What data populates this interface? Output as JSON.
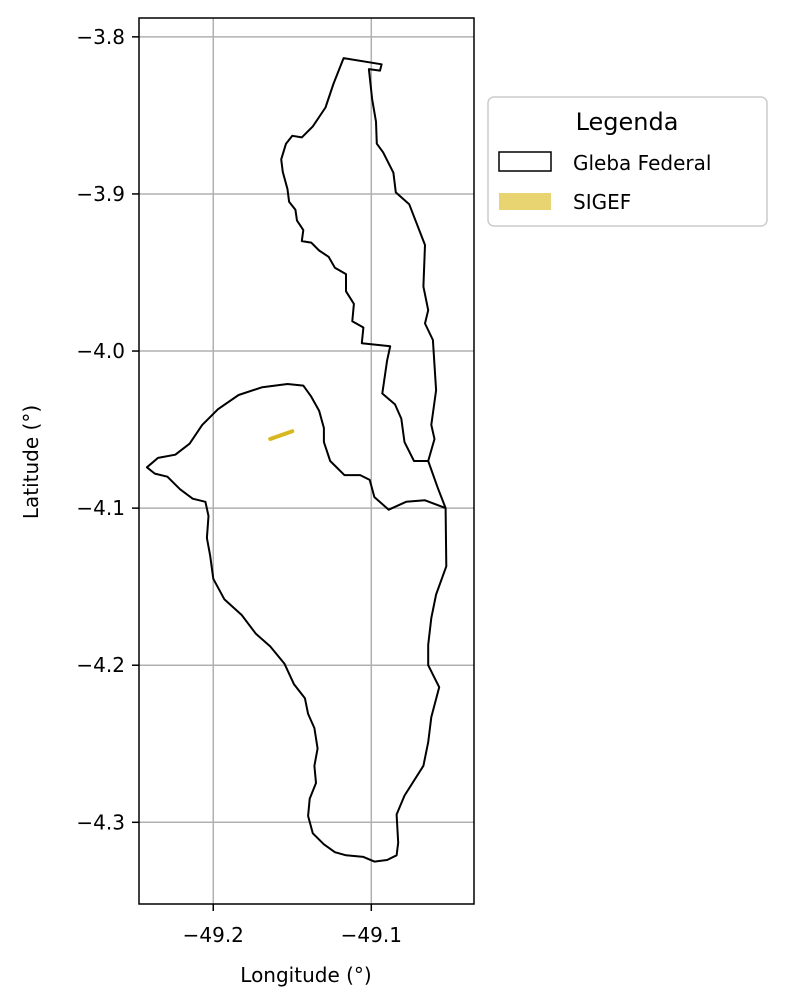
{
  "chart_data": {
    "type": "map",
    "xlabel": "Longitude (°)",
    "ylabel": "Latitude (°)",
    "xlim": [
      -49.247,
      -49.035
    ],
    "ylim": [
      -4.352,
      -3.788
    ],
    "xticks": [
      -49.2,
      -49.1
    ],
    "xtick_labels": [
      "−49.2",
      "−49.1"
    ],
    "yticks": [
      -3.8,
      -3.9,
      -4.0,
      -4.1,
      -4.2,
      -4.3
    ],
    "ytick_labels": [
      "−3.8",
      "−3.9",
      "−4.0",
      "−4.1",
      "−4.2",
      "−4.3"
    ],
    "grid": true,
    "legend": {
      "title": "Legenda",
      "placement": "outside upper right",
      "entries": [
        {
          "label": "Gleba Federal",
          "style": "outline",
          "color": "#000000"
        },
        {
          "label": "SIGEF",
          "style": "fill",
          "color": "#e8d470"
        }
      ]
    },
    "layers": [
      {
        "name": "Gleba Federal",
        "kind": "polygon",
        "stroke": "#000000",
        "fill": "none",
        "coordinates": [
          [
            -49.1175,
            -3.8135
          ],
          [
            -49.0935,
            -3.8175
          ],
          [
            -49.0945,
            -3.8215
          ],
          [
            -49.1015,
            -3.8205
          ],
          [
            -49.0995,
            -3.8395
          ],
          [
            -49.097,
            -3.854
          ],
          [
            -49.0965,
            -3.868
          ],
          [
            -49.0925,
            -3.8735
          ],
          [
            -49.086,
            -3.8865
          ],
          [
            -49.0845,
            -3.899
          ],
          [
            -49.076,
            -3.9065
          ],
          [
            -49.066,
            -3.9325
          ],
          [
            -49.067,
            -3.959
          ],
          [
            -49.064,
            -3.974
          ],
          [
            -49.066,
            -3.9825
          ],
          [
            -49.061,
            -3.993
          ],
          [
            -49.059,
            -4.025
          ],
          [
            -49.0605,
            -4.036
          ],
          [
            -49.062,
            -4.047
          ],
          [
            -49.06,
            -4.056
          ],
          [
            -49.064,
            -4.07
          ],
          [
            -49.058,
            -4.087
          ],
          [
            -49.053,
            -4.1
          ],
          [
            -49.0525,
            -4.137
          ],
          [
            -49.059,
            -4.155
          ],
          [
            -49.062,
            -4.17
          ],
          [
            -49.064,
            -4.187
          ],
          [
            -49.064,
            -4.2
          ],
          [
            -49.057,
            -4.214
          ],
          [
            -49.062,
            -4.233
          ],
          [
            -49.064,
            -4.249
          ],
          [
            -49.067,
            -4.264
          ],
          [
            -49.079,
            -4.283
          ],
          [
            -49.084,
            -4.295
          ],
          [
            -49.083,
            -4.313
          ],
          [
            -49.084,
            -4.321
          ],
          [
            -49.09,
            -4.324
          ],
          [
            -49.098,
            -4.325
          ],
          [
            -49.105,
            -4.322
          ],
          [
            -49.116,
            -4.321
          ],
          [
            -49.123,
            -4.319
          ],
          [
            -49.13,
            -4.314
          ],
          [
            -49.137,
            -4.307
          ],
          [
            -49.14,
            -4.296
          ],
          [
            -49.139,
            -4.285
          ],
          [
            -49.135,
            -4.275
          ],
          [
            -49.136,
            -4.264
          ],
          [
            -49.134,
            -4.253
          ],
          [
            -49.136,
            -4.24
          ],
          [
            -49.14,
            -4.231
          ],
          [
            -49.142,
            -4.221
          ],
          [
            -49.149,
            -4.212
          ],
          [
            -49.155,
            -4.199
          ],
          [
            -49.164,
            -4.188
          ],
          [
            -49.173,
            -4.18
          ],
          [
            -49.182,
            -4.168
          ],
          [
            -49.193,
            -4.158
          ],
          [
            -49.2,
            -4.145
          ],
          [
            -49.202,
            -4.13
          ],
          [
            -49.204,
            -4.119
          ],
          [
            -49.203,
            -4.105
          ],
          [
            -49.205,
            -4.096
          ],
          [
            -49.213,
            -4.094
          ],
          [
            -49.221,
            -4.088
          ],
          [
            -49.229,
            -4.08
          ],
          [
            -49.237,
            -4.078
          ],
          [
            -49.242,
            -4.074
          ],
          [
            -49.235,
            -4.068
          ],
          [
            -49.224,
            -4.066
          ],
          [
            -49.215,
            -4.059
          ],
          [
            -49.207,
            -4.047
          ],
          [
            -49.197,
            -4.037
          ],
          [
            -49.184,
            -4.028
          ],
          [
            -49.169,
            -4.023
          ],
          [
            -49.153,
            -4.021
          ],
          [
            -49.143,
            -4.022
          ],
          [
            -49.138,
            -4.029
          ],
          [
            -49.133,
            -4.038
          ],
          [
            -49.13,
            -4.049
          ],
          [
            -49.13,
            -4.058
          ],
          [
            -49.126,
            -4.07
          ],
          [
            -49.117,
            -4.079
          ],
          [
            -49.107,
            -4.079
          ],
          [
            -49.101,
            -4.082
          ],
          [
            -49.098,
            -4.093
          ],
          [
            -49.089,
            -4.101
          ],
          [
            -49.078,
            -4.096
          ],
          [
            -49.066,
            -4.095
          ],
          [
            -49.053,
            -4.1
          ],
          [
            -49.058,
            -4.087
          ],
          [
            -49.064,
            -4.07
          ],
          [
            -49.073,
            -4.07
          ],
          [
            -49.079,
            -4.058
          ],
          [
            -49.081,
            -4.043
          ],
          [
            -49.085,
            -4.034
          ],
          [
            -49.093,
            -4.027
          ],
          [
            -49.09,
            -4.006
          ],
          [
            -49.088,
            -3.997
          ],
          [
            -49.106,
            -3.995
          ],
          [
            -49.105,
            -3.985
          ],
          [
            -49.112,
            -3.981
          ],
          [
            -49.111,
            -3.97
          ],
          [
            -49.116,
            -3.962
          ],
          [
            -49.116,
            -3.951
          ],
          [
            -49.123,
            -3.947
          ],
          [
            -49.127,
            -3.94
          ],
          [
            -49.133,
            -3.936
          ],
          [
            -49.138,
            -3.931
          ],
          [
            -49.144,
            -3.93
          ],
          [
            -49.143,
            -3.923
          ],
          [
            -49.147,
            -3.917
          ],
          [
            -49.148,
            -3.91
          ],
          [
            -49.152,
            -3.905
          ],
          [
            -49.153,
            -3.897
          ],
          [
            -49.156,
            -3.886
          ],
          [
            -49.157,
            -3.878
          ],
          [
            -49.154,
            -3.868
          ],
          [
            -49.15,
            -3.863
          ],
          [
            -49.144,
            -3.864
          ],
          [
            -49.137,
            -3.857
          ],
          [
            -49.129,
            -3.845
          ],
          [
            -49.124,
            -3.83
          ],
          [
            -49.1175,
            -3.8135
          ]
        ]
      },
      {
        "name": "SIGEF",
        "kind": "line",
        "stroke": "#d8b820",
        "coordinates": [
          [
            -49.164,
            -4.056
          ],
          [
            -49.15,
            -4.051
          ]
        ]
      }
    ]
  }
}
